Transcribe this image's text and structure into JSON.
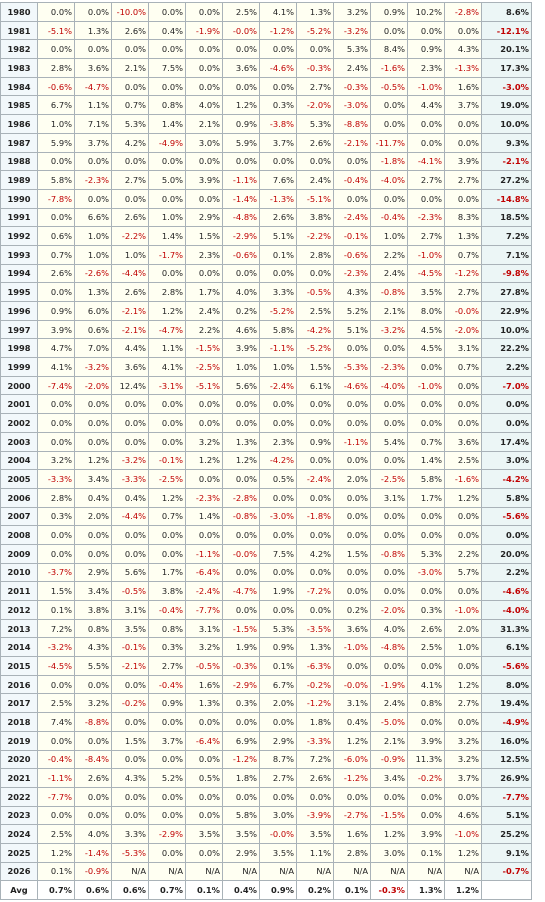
{
  "table": {
    "rows": [
      [
        "1980",
        "0.0%",
        "0.0%",
        "-10.0%",
        "0.0%",
        "0.0%",
        "2.5%",
        "4.1%",
        "1.3%",
        "3.2%",
        "0.9%",
        "10.2%",
        "-2.8%",
        "8.6%"
      ],
      [
        "1981",
        "-5.1%",
        "1.3%",
        "2.6%",
        "0.4%",
        "-1.9%",
        "-0.0%",
        "-1.2%",
        "-5.2%",
        "-3.2%",
        "0.0%",
        "0.0%",
        "0.0%",
        "-12.1%"
      ],
      [
        "1982",
        "0.0%",
        "0.0%",
        "0.0%",
        "0.0%",
        "0.0%",
        "0.0%",
        "0.0%",
        "0.0%",
        "5.3%",
        "8.4%",
        "0.9%",
        "4.3%",
        "20.1%"
      ],
      [
        "1983",
        "2.8%",
        "3.6%",
        "2.1%",
        "7.5%",
        "0.0%",
        "3.6%",
        "-4.6%",
        "-0.3%",
        "2.4%",
        "-1.6%",
        "2.3%",
        "-1.3%",
        "17.3%"
      ],
      [
        "1984",
        "-0.6%",
        "-4.7%",
        "0.0%",
        "0.0%",
        "0.0%",
        "0.0%",
        "0.0%",
        "2.7%",
        "-0.3%",
        "-0.5%",
        "-1.0%",
        "1.6%",
        "-3.0%"
      ],
      [
        "1985",
        "6.7%",
        "1.1%",
        "0.7%",
        "0.8%",
        "4.0%",
        "1.2%",
        "0.3%",
        "-2.0%",
        "-3.0%",
        "0.0%",
        "4.4%",
        "3.7%",
        "19.0%"
      ],
      [
        "1986",
        "1.0%",
        "7.1%",
        "5.3%",
        "1.4%",
        "2.1%",
        "0.9%",
        "-3.8%",
        "5.3%",
        "-8.8%",
        "0.0%",
        "0.0%",
        "0.0%",
        "10.0%"
      ],
      [
        "1987",
        "5.9%",
        "3.7%",
        "4.2%",
        "-4.9%",
        "3.0%",
        "5.9%",
        "3.7%",
        "2.6%",
        "-2.1%",
        "-11.7%",
        "0.0%",
        "0.0%",
        "9.3%"
      ],
      [
        "1988",
        "0.0%",
        "0.0%",
        "0.0%",
        "0.0%",
        "0.0%",
        "0.0%",
        "0.0%",
        "0.0%",
        "0.0%",
        "-1.8%",
        "-4.1%",
        "3.9%",
        "-2.1%"
      ],
      [
        "1989",
        "5.8%",
        "-2.3%",
        "2.7%",
        "5.0%",
        "3.9%",
        "-1.1%",
        "7.6%",
        "2.4%",
        "-0.4%",
        "-4.0%",
        "2.7%",
        "2.7%",
        "27.2%"
      ],
      [
        "1990",
        "-7.8%",
        "0.0%",
        "0.0%",
        "0.0%",
        "0.0%",
        "-1.4%",
        "-1.3%",
        "-5.1%",
        "0.0%",
        "0.0%",
        "0.0%",
        "0.0%",
        "-14.8%"
      ],
      [
        "1991",
        "0.0%",
        "6.6%",
        "2.6%",
        "1.0%",
        "2.9%",
        "-4.8%",
        "2.6%",
        "3.8%",
        "-2.4%",
        "-0.4%",
        "-2.3%",
        "8.3%",
        "18.5%"
      ],
      [
        "1992",
        "0.6%",
        "1.0%",
        "-2.2%",
        "1.4%",
        "1.5%",
        "-2.9%",
        "5.1%",
        "-2.2%",
        "-0.1%",
        "1.0%",
        "2.7%",
        "1.3%",
        "7.2%"
      ],
      [
        "1993",
        "0.7%",
        "1.0%",
        "1.0%",
        "-1.7%",
        "2.3%",
        "-0.6%",
        "0.1%",
        "2.8%",
        "-0.6%",
        "2.2%",
        "-1.0%",
        "0.7%",
        "7.1%"
      ],
      [
        "1994",
        "2.6%",
        "-2.6%",
        "-4.4%",
        "0.0%",
        "0.0%",
        "0.0%",
        "0.0%",
        "0.0%",
        "-2.3%",
        "2.4%",
        "-4.5%",
        "-1.2%",
        "-9.8%"
      ],
      [
        "1995",
        "0.0%",
        "1.3%",
        "2.6%",
        "2.8%",
        "1.7%",
        "4.0%",
        "3.3%",
        "-0.5%",
        "4.3%",
        "-0.8%",
        "3.5%",
        "2.7%",
        "27.8%"
      ],
      [
        "1996",
        "0.9%",
        "6.0%",
        "-2.1%",
        "1.2%",
        "2.4%",
        "0.2%",
        "-5.2%",
        "2.5%",
        "5.2%",
        "2.1%",
        "8.0%",
        "-0.0%",
        "22.9%"
      ],
      [
        "1997",
        "3.9%",
        "0.6%",
        "-2.1%",
        "-4.7%",
        "2.2%",
        "4.6%",
        "5.8%",
        "-4.2%",
        "5.1%",
        "-3.2%",
        "4.5%",
        "-2.0%",
        "10.0%"
      ],
      [
        "1998",
        "4.7%",
        "7.0%",
        "4.4%",
        "1.1%",
        "-1.5%",
        "3.9%",
        "-1.1%",
        "-5.2%",
        "0.0%",
        "0.0%",
        "4.5%",
        "3.1%",
        "22.2%"
      ],
      [
        "1999",
        "4.1%",
        "-3.2%",
        "3.6%",
        "4.1%",
        "-2.5%",
        "1.0%",
        "1.0%",
        "1.5%",
        "-5.3%",
        "-2.3%",
        "0.0%",
        "0.7%",
        "2.2%"
      ],
      [
        "2000",
        "-7.4%",
        "-2.0%",
        "12.4%",
        "-3.1%",
        "-5.1%",
        "5.6%",
        "-2.4%",
        "6.1%",
        "-4.6%",
        "-4.0%",
        "-1.0%",
        "0.0%",
        "-7.0%"
      ],
      [
        "2001",
        "0.0%",
        "0.0%",
        "0.0%",
        "0.0%",
        "0.0%",
        "0.0%",
        "0.0%",
        "0.0%",
        "0.0%",
        "0.0%",
        "0.0%",
        "0.0%",
        "0.0%"
      ],
      [
        "2002",
        "0.0%",
        "0.0%",
        "0.0%",
        "0.0%",
        "0.0%",
        "0.0%",
        "0.0%",
        "0.0%",
        "0.0%",
        "0.0%",
        "0.0%",
        "0.0%",
        "0.0%"
      ],
      [
        "2003",
        "0.0%",
        "0.0%",
        "0.0%",
        "0.0%",
        "3.2%",
        "1.3%",
        "2.3%",
        "0.9%",
        "-1.1%",
        "5.4%",
        "0.7%",
        "3.6%",
        "17.4%"
      ],
      [
        "2004",
        "3.2%",
        "1.2%",
        "-3.2%",
        "-0.1%",
        "1.2%",
        "1.2%",
        "-4.2%",
        "0.0%",
        "0.0%",
        "0.0%",
        "1.4%",
        "2.5%",
        "3.0%"
      ],
      [
        "2005",
        "-3.3%",
        "3.4%",
        "-3.3%",
        "-2.5%",
        "0.0%",
        "0.0%",
        "0.5%",
        "-2.4%",
        "2.0%",
        "-2.5%",
        "5.8%",
        "-1.6%",
        "-4.2%"
      ],
      [
        "2006",
        "2.8%",
        "0.4%",
        "0.4%",
        "1.2%",
        "-2.3%",
        "-2.8%",
        "0.0%",
        "0.0%",
        "0.0%",
        "3.1%",
        "1.7%",
        "1.2%",
        "5.8%"
      ],
      [
        "2007",
        "0.3%",
        "2.0%",
        "-4.4%",
        "0.7%",
        "1.4%",
        "-0.8%",
        "-3.0%",
        "-1.8%",
        "0.0%",
        "0.0%",
        "0.0%",
        "0.0%",
        "-5.6%"
      ],
      [
        "2008",
        "0.0%",
        "0.0%",
        "0.0%",
        "0.0%",
        "0.0%",
        "0.0%",
        "0.0%",
        "0.0%",
        "0.0%",
        "0.0%",
        "0.0%",
        "0.0%",
        "0.0%"
      ],
      [
        "2009",
        "0.0%",
        "0.0%",
        "0.0%",
        "0.0%",
        "-1.1%",
        "-0.0%",
        "7.5%",
        "4.2%",
        "1.5%",
        "-0.8%",
        "5.3%",
        "2.2%",
        "20.0%"
      ],
      [
        "2010",
        "-3.7%",
        "2.9%",
        "5.6%",
        "1.7%",
        "-6.4%",
        "0.0%",
        "0.0%",
        "0.0%",
        "0.0%",
        "0.0%",
        "-3.0%",
        "5.7%",
        "2.2%"
      ],
      [
        "2011",
        "1.5%",
        "3.4%",
        "-0.5%",
        "3.8%",
        "-2.4%",
        "-4.7%",
        "1.9%",
        "-7.2%",
        "0.0%",
        "0.0%",
        "0.0%",
        "0.0%",
        "-4.6%"
      ],
      [
        "2012",
        "0.1%",
        "3.8%",
        "3.1%",
        "-0.4%",
        "-7.7%",
        "0.0%",
        "0.0%",
        "0.0%",
        "0.2%",
        "-2.0%",
        "0.3%",
        "-1.0%",
        "-4.0%"
      ],
      [
        "2013",
        "7.2%",
        "0.8%",
        "3.5%",
        "0.8%",
        "3.1%",
        "-1.5%",
        "5.3%",
        "-3.5%",
        "3.6%",
        "4.0%",
        "2.6%",
        "2.0%",
        "31.3%"
      ],
      [
        "2014",
        "-3.2%",
        "4.3%",
        "-0.1%",
        "0.3%",
        "3.2%",
        "1.9%",
        "0.9%",
        "1.3%",
        "-1.0%",
        "-4.8%",
        "2.5%",
        "1.0%",
        "6.1%"
      ],
      [
        "2015",
        "-4.5%",
        "5.5%",
        "-2.1%",
        "2.7%",
        "-0.5%",
        "-0.3%",
        "0.1%",
        "-6.3%",
        "0.0%",
        "0.0%",
        "0.0%",
        "0.0%",
        "-5.6%"
      ],
      [
        "2016",
        "0.0%",
        "0.0%",
        "0.0%",
        "-0.4%",
        "1.6%",
        "-2.9%",
        "6.7%",
        "-0.2%",
        "-0.0%",
        "-1.9%",
        "4.1%",
        "1.2%",
        "8.0%"
      ],
      [
        "2017",
        "2.5%",
        "3.2%",
        "-0.2%",
        "0.9%",
        "1.3%",
        "0.3%",
        "2.0%",
        "-1.2%",
        "3.1%",
        "2.4%",
        "0.8%",
        "2.7%",
        "19.4%"
      ],
      [
        "2018",
        "7.4%",
        "-8.8%",
        "0.0%",
        "0.0%",
        "0.0%",
        "0.0%",
        "0.0%",
        "1.8%",
        "0.4%",
        "-5.0%",
        "0.0%",
        "0.0%",
        "-4.9%"
      ],
      [
        "2019",
        "0.0%",
        "0.0%",
        "1.5%",
        "3.7%",
        "-6.4%",
        "6.9%",
        "2.9%",
        "-3.3%",
        "1.2%",
        "2.1%",
        "3.9%",
        "3.2%",
        "16.0%"
      ],
      [
        "2020",
        "-0.4%",
        "-8.4%",
        "0.0%",
        "0.0%",
        "0.0%",
        "-1.2%",
        "8.7%",
        "7.2%",
        "-6.0%",
        "-0.9%",
        "11.3%",
        "3.2%",
        "12.5%"
      ],
      [
        "2021",
        "-1.1%",
        "2.6%",
        "4.3%",
        "5.2%",
        "0.5%",
        "1.8%",
        "2.7%",
        "2.6%",
        "-1.2%",
        "3.4%",
        "-0.2%",
        "3.7%",
        "26.9%"
      ],
      [
        "2022",
        "-7.7%",
        "0.0%",
        "0.0%",
        "0.0%",
        "0.0%",
        "0.0%",
        "0.0%",
        "0.0%",
        "0.0%",
        "0.0%",
        "0.0%",
        "0.0%",
        "-7.7%"
      ],
      [
        "2023",
        "0.0%",
        "0.0%",
        "0.0%",
        "0.0%",
        "0.0%",
        "5.8%",
        "3.0%",
        "-3.9%",
        "-2.7%",
        "-1.5%",
        "0.0%",
        "4.6%",
        "5.1%"
      ],
      [
        "2024",
        "2.5%",
        "4.0%",
        "3.3%",
        "-2.9%",
        "3.5%",
        "3.5%",
        "-0.0%",
        "3.5%",
        "1.6%",
        "1.2%",
        "3.9%",
        "-1.0%",
        "25.2%"
      ],
      [
        "2025",
        "1.2%",
        "-1.4%",
        "-5.3%",
        "0.0%",
        "0.0%",
        "2.9%",
        "3.5%",
        "1.1%",
        "2.8%",
        "3.0%",
        "0.1%",
        "1.2%",
        "9.1%"
      ],
      [
        "2026",
        "0.1%",
        "-0.9%",
        "N/A",
        "N/A",
        "N/A",
        "N/A",
        "N/A",
        "N/A",
        "N/A",
        "N/A",
        "N/A",
        "N/A",
        "-0.7%"
      ],
      [
        "Avg",
        "0.7%",
        "0.6%",
        "0.6%",
        "0.7%",
        "0.1%",
        "0.4%",
        "0.9%",
        "0.2%",
        "0.1%",
        "-0.3%",
        "1.3%",
        "1.2%"
      ]
    ]
  }
}
